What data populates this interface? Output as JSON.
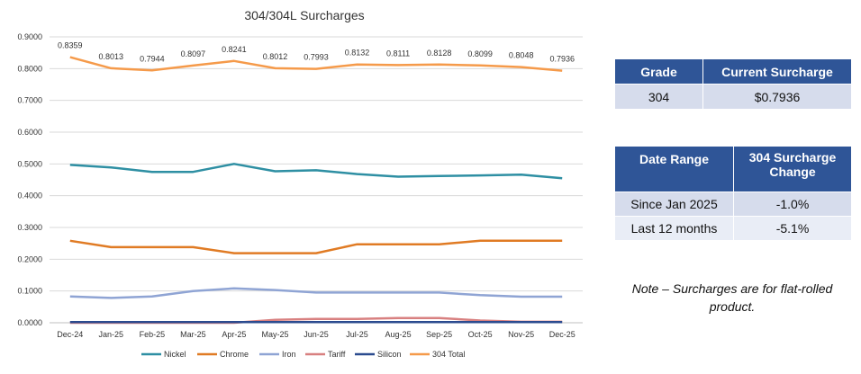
{
  "chart_data": {
    "type": "line",
    "title": "304/304L Surcharges",
    "categories": [
      "Dec-24",
      "Jan-25",
      "Feb-25",
      "Mar-25",
      "Apr-25",
      "May-25",
      "Jun-25",
      "Jul-25",
      "Aug-25",
      "Sep-25",
      "Oct-25",
      "Nov-25",
      "Dec-25"
    ],
    "ylim": [
      0,
      0.9
    ],
    "yticks": [
      "0.0000",
      "0.1000",
      "0.2000",
      "0.3000",
      "0.4000",
      "0.5000",
      "0.6000",
      "0.7000",
      "0.8000",
      "0.9000"
    ],
    "grid": true,
    "legend_position": "bottom",
    "series": [
      {
        "name": "Nickel",
        "color": "#2e8fa3",
        "values": [
          0.497,
          0.489,
          0.475,
          0.475,
          0.5,
          0.477,
          0.48,
          0.468,
          0.46,
          0.462,
          0.464,
          0.466,
          0.455
        ]
      },
      {
        "name": "Chrome",
        "color": "#e07b24",
        "values": [
          0.258,
          0.238,
          0.238,
          0.238,
          0.219,
          0.219,
          0.219,
          0.247,
          0.247,
          0.247,
          0.258,
          0.258,
          0.258
        ]
      },
      {
        "name": "Iron",
        "color": "#8fa4d4",
        "values": [
          0.083,
          0.078,
          0.083,
          0.1,
          0.108,
          0.103,
          0.095,
          0.095,
          0.095,
          0.095,
          0.087,
          0.082,
          0.082
        ]
      },
      {
        "name": "Tariff",
        "color": "#d88080",
        "values": [
          0,
          0,
          0,
          0,
          0,
          0.009,
          0.012,
          0.012,
          0.015,
          0.015,
          0.007,
          0.003,
          0.003
        ]
      },
      {
        "name": "Silicon",
        "color": "#2b4b8f",
        "values": [
          0.002,
          0.002,
          0.002,
          0.002,
          0.002,
          0.002,
          0.002,
          0.002,
          0.002,
          0.002,
          0.002,
          0.002,
          0.002
        ]
      },
      {
        "name": "304 Total",
        "color": "#f59a4a",
        "values": [
          0.8359,
          0.8013,
          0.7944,
          0.8097,
          0.8241,
          0.8012,
          0.7993,
          0.8132,
          0.8111,
          0.8128,
          0.8099,
          0.8048,
          0.7936
        ],
        "labels": [
          "0.8359",
          "0.8013",
          "0.7944",
          "0.8097",
          "0.8241",
          "0.8012",
          "0.7993",
          "0.8132",
          "0.8111",
          "0.8128",
          "0.8099",
          "0.8048",
          "0.7936"
        ]
      }
    ]
  },
  "grade_table": {
    "headers": [
      "Grade",
      "Current Surcharge"
    ],
    "row": [
      "304",
      "$0.7936"
    ]
  },
  "change_table": {
    "headers": [
      "Date Range",
      "304 Surcharge Change"
    ],
    "rows": [
      [
        "Since Jan 2025",
        "-1.0%"
      ],
      [
        "Last 12 months",
        "-5.1%"
      ]
    ]
  },
  "note": "Note – Surcharges are for flat-rolled product."
}
